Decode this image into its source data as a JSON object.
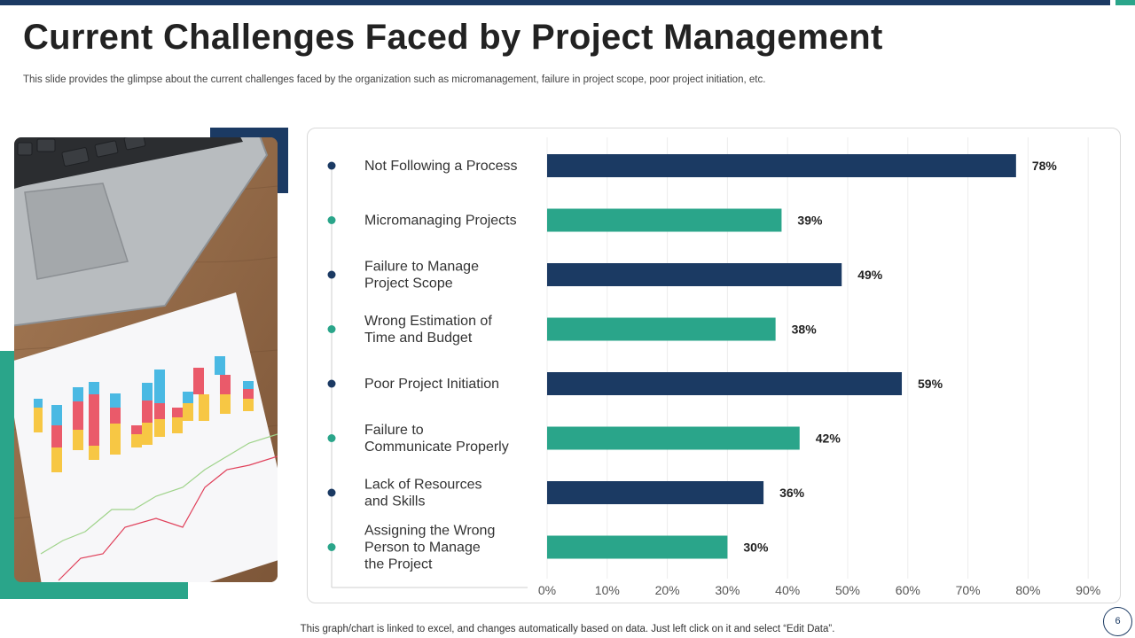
{
  "slide": {
    "title": "Current Challenges Faced by Project Management",
    "subtitle": "This slide provides the glimpse about the current challenges faced by the organization such as micromanagement, failure in project scope, poor project initiation, etc.",
    "footer_note": "This graph/chart is linked to excel,  and changes automatically based on data. Just left click on it and select “Edit Data”.",
    "page_number": "6"
  },
  "colors": {
    "navy": "#1b3a63",
    "teal": "#2aa58a"
  },
  "chart_data": {
    "type": "bar",
    "orientation": "horizontal",
    "title": "",
    "xlabel": "",
    "ylabel": "",
    "categories": [
      [
        "Not Following a Process"
      ],
      [
        "Micromanaging Projects"
      ],
      [
        "Failure to Manage",
        "Project Scope"
      ],
      [
        "Wrong Estimation of",
        "Time and Budget"
      ],
      [
        "Poor Project Initiation"
      ],
      [
        "Failure to",
        "Communicate Properly"
      ],
      [
        "Lack of Resources",
        "and Skills"
      ],
      [
        "Assigning the Wrong",
        "Person to Manage",
        "the Project"
      ]
    ],
    "values": [
      78,
      39,
      49,
      38,
      59,
      42,
      36,
      30
    ],
    "value_labels": [
      "78%",
      "39%",
      "49%",
      "38%",
      "59%",
      "42%",
      "36%",
      "30%"
    ],
    "bar_colors": [
      "#1b3a63",
      "#2aa58a",
      "#1b3a63",
      "#2aa58a",
      "#1b3a63",
      "#2aa58a",
      "#1b3a63",
      "#2aa58a"
    ],
    "xlim": [
      0,
      90
    ],
    "x_ticks": [
      0,
      10,
      20,
      30,
      40,
      50,
      60,
      70,
      80,
      90
    ],
    "x_tick_labels": [
      "0%",
      "10%",
      "20%",
      "30%",
      "40%",
      "50%",
      "60%",
      "70%",
      "80%",
      "90%"
    ],
    "grid": true
  }
}
